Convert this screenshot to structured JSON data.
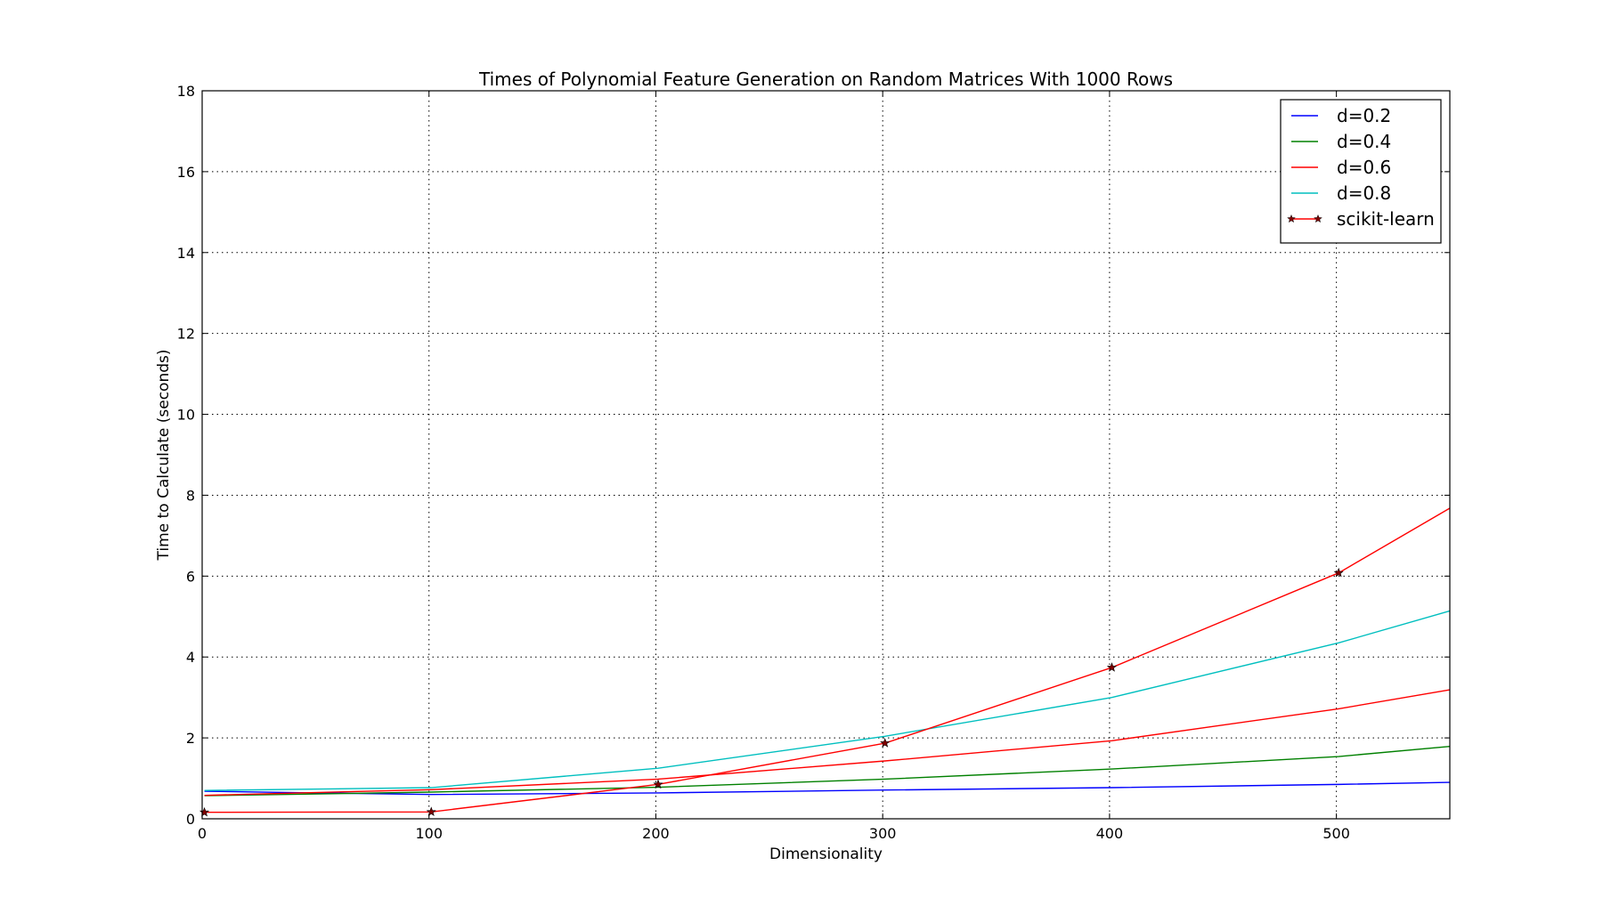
{
  "chart_data": {
    "type": "line",
    "title": "Times of Polynomial Feature Generation on Random Matrices With 1000 Rows",
    "xlabel": "Dimensionality",
    "ylabel": "Time to Calculate (seconds)",
    "xlim": [
      0,
      550
    ],
    "ylim": [
      0,
      18
    ],
    "xticks": [
      0,
      100,
      200,
      300,
      400,
      500
    ],
    "yticks": [
      0,
      2,
      4,
      6,
      8,
      10,
      12,
      14,
      16,
      18
    ],
    "grid": true,
    "legend_position": "top-right",
    "series": [
      {
        "name": "d=0.2",
        "color": "#0000ff",
        "marker": "none",
        "x": [
          1,
          101,
          201,
          301,
          401,
          501,
          550
        ],
        "y": [
          0.68,
          0.6,
          0.64,
          0.71,
          0.77,
          0.85,
          0.9
        ]
      },
      {
        "name": "d=0.4",
        "color": "#008000",
        "marker": "none",
        "x": [
          1,
          101,
          201,
          301,
          401,
          501,
          550
        ],
        "y": [
          0.57,
          0.66,
          0.78,
          0.98,
          1.23,
          1.54,
          1.79
        ]
      },
      {
        "name": "d=0.6",
        "color": "#ff0000",
        "marker": "none",
        "x": [
          1,
          101,
          201,
          301,
          401,
          501,
          550
        ],
        "y": [
          0.58,
          0.72,
          0.98,
          1.43,
          1.93,
          2.72,
          3.19
        ]
      },
      {
        "name": "d=0.8",
        "color": "#00bfbf",
        "marker": "none",
        "x": [
          1,
          101,
          201,
          301,
          401,
          501,
          550
        ],
        "y": [
          0.7,
          0.77,
          1.25,
          2.04,
          3.0,
          4.35,
          5.14
        ]
      },
      {
        "name": "scikit-learn",
        "color": "#ff0000",
        "marker": "star",
        "marker_color": "#800000",
        "x": [
          1,
          101,
          201,
          301,
          401,
          501,
          550
        ],
        "y": [
          0.16,
          0.17,
          0.85,
          1.87,
          3.74,
          6.08,
          7.68
        ],
        "marker_x": [
          1,
          101,
          201,
          301,
          401,
          501
        ]
      }
    ]
  }
}
